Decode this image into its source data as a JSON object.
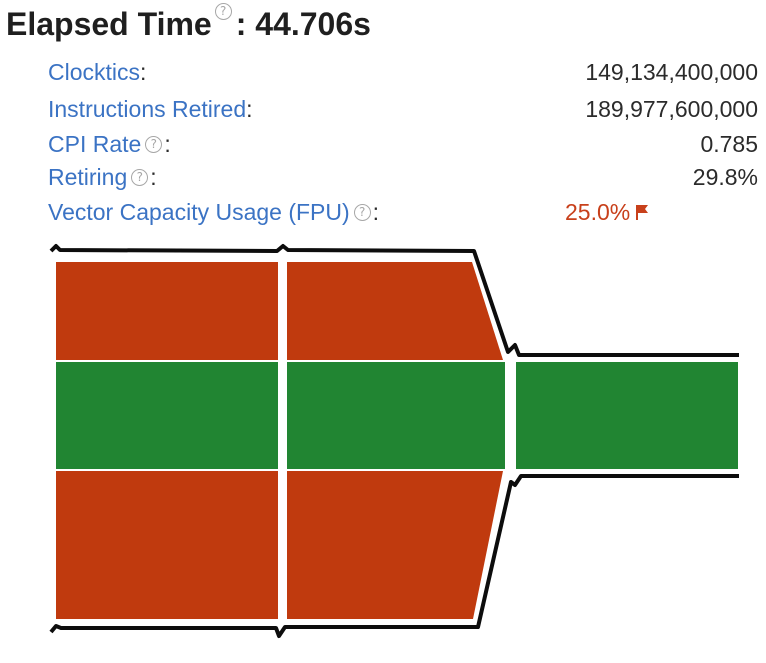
{
  "summary": {
    "title": "Elapsed Time",
    "value": ": 44.706s"
  },
  "metrics": [
    {
      "label": "Clocktics",
      "value": "149,134,400,000",
      "help": false
    },
    {
      "label": "Instructions Retired",
      "value": "189,977,600,000",
      "help": false
    },
    {
      "label": "CPI Rate",
      "value": "0.785",
      "help": true
    },
    {
      "label": "Retiring",
      "value": "29.8%",
      "help": true
    },
    {
      "label": "Vector Capacity Usage (FPU)",
      "value": "25.0%",
      "help": true,
      "flagged": true
    }
  ],
  "icons": {
    "help": "help-circle-icon",
    "flag": "flag-icon"
  },
  "colors": {
    "title": "#1f1f1f",
    "label_link": "#3b73c4",
    "warning": "#c8401b",
    "pipe_red": "#c03a0e",
    "pipe_green": "#218532"
  }
}
